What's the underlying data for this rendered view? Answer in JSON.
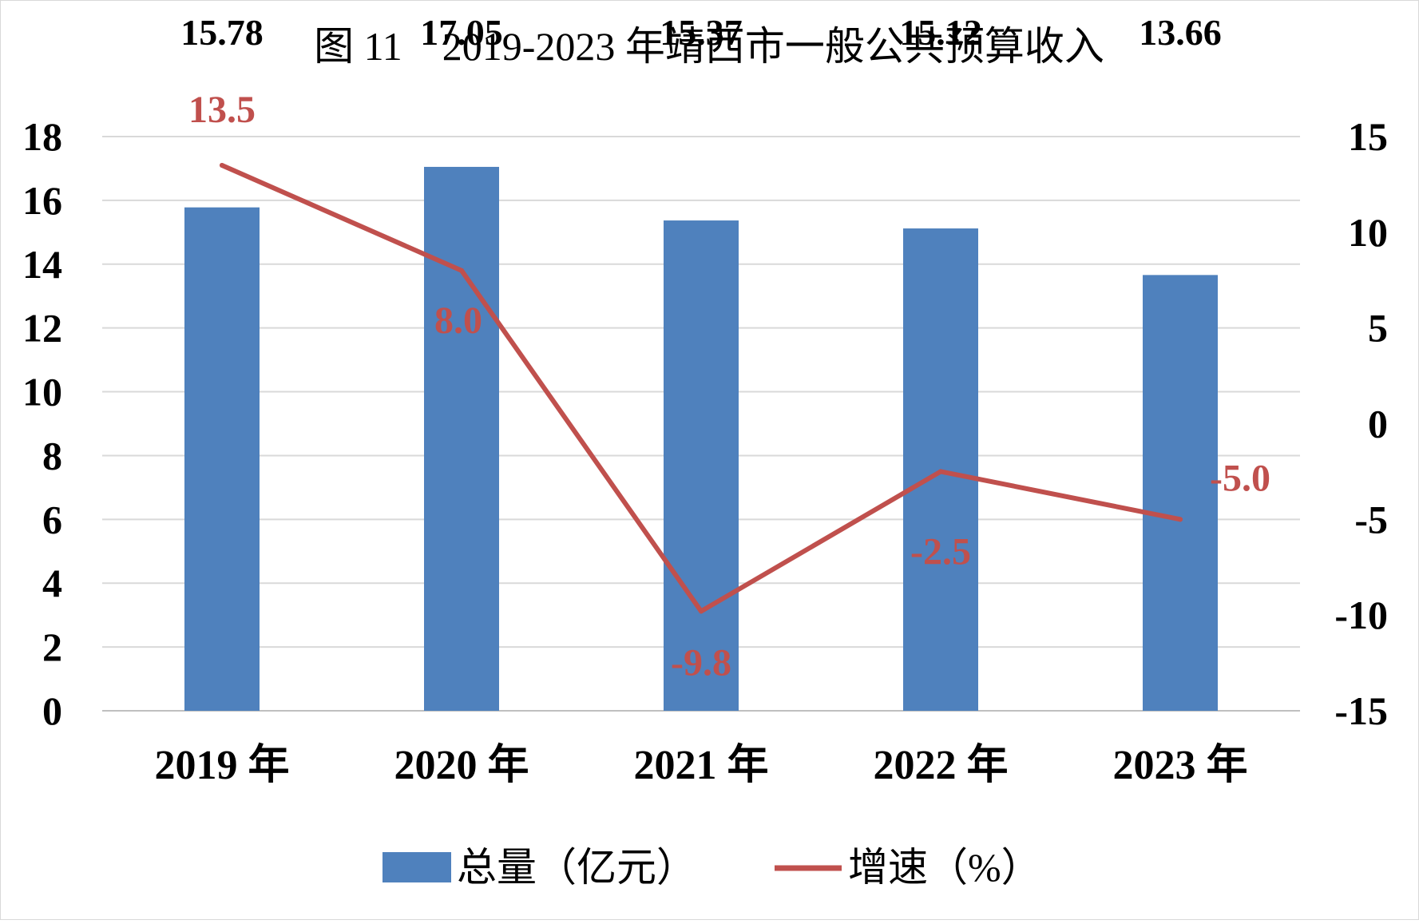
{
  "chart_data": {
    "type": "bar",
    "title": "图 11　2019-2023 年靖西市一般公共预算收入",
    "categories": [
      "2019 年",
      "2020 年",
      "2021 年",
      "2022 年",
      "2023 年"
    ],
    "series": [
      {
        "name": "总量（亿元）",
        "type": "bar",
        "axis": "left",
        "color": "#4F81BD",
        "values": [
          15.78,
          17.05,
          15.37,
          15.12,
          13.66
        ],
        "labels": [
          "15.78",
          "17.05",
          "15.37",
          "15.12",
          "13.66"
        ]
      },
      {
        "name": "增速（%）",
        "type": "line",
        "axis": "right",
        "color": "#C0504D",
        "values": [
          13.5,
          8.0,
          -9.8,
          -2.5,
          -5.0
        ],
        "labels": [
          "13.5",
          "8.0",
          "-9.8",
          "-2.5",
          "-5.0"
        ]
      }
    ],
    "y_left": {
      "min": 0,
      "max": 18,
      "ticks": [
        "0",
        "2",
        "4",
        "6",
        "8",
        "10",
        "12",
        "14",
        "16",
        "18"
      ]
    },
    "y_right": {
      "min": -15,
      "max": 15,
      "ticks": [
        "-15",
        "-10",
        "-5",
        "0",
        "5",
        "10",
        "15"
      ]
    },
    "grid": true,
    "legend_position": "bottom"
  }
}
